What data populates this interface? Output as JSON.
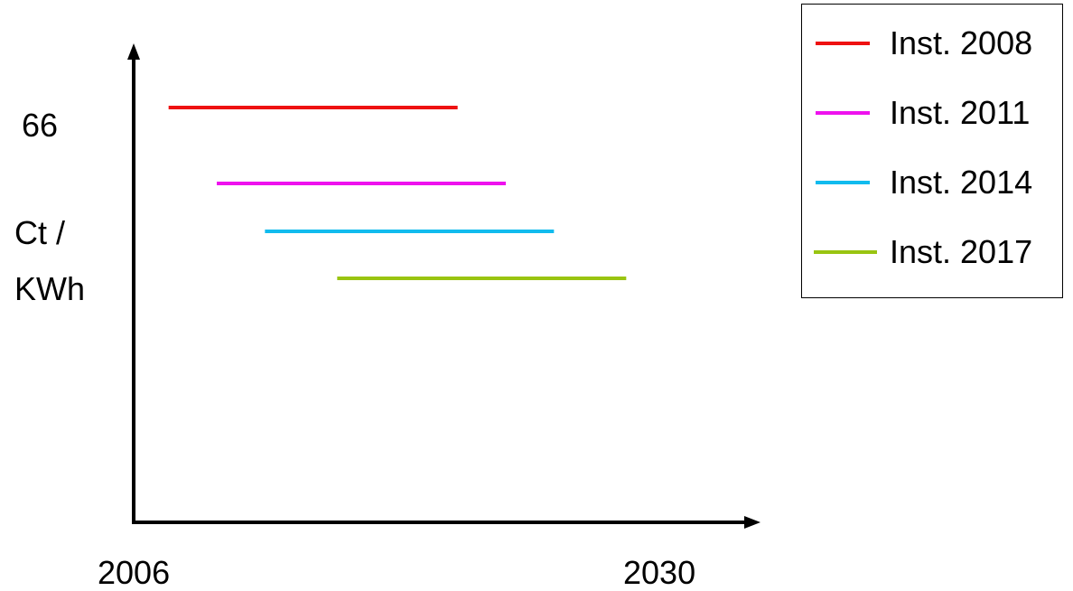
{
  "chart_data": {
    "type": "line",
    "title": "",
    "xlabel": "",
    "ylabel": "Ct / KWh",
    "ylabel_lines": [
      "Ct /",
      "KWh"
    ],
    "x_tick_labels": [
      "2006",
      "2030"
    ],
    "y_tick_labels": [
      "66"
    ],
    "xlim": [
      2006,
      2030
    ],
    "grid": false,
    "legend_position": "top-right",
    "series": [
      {
        "name": "Inst. 2008",
        "color": "#ee1111",
        "x": [
          2007,
          2019
        ]
      },
      {
        "name": "Inst. 2011",
        "color": "#ee11ee",
        "x": [
          2009,
          2021
        ]
      },
      {
        "name": "Inst. 2014",
        "color": "#11bbee",
        "x": [
          2011,
          2023
        ]
      },
      {
        "name": "Inst. 2017",
        "color": "#99c411",
        "x": [
          2014,
          2026
        ]
      }
    ]
  }
}
